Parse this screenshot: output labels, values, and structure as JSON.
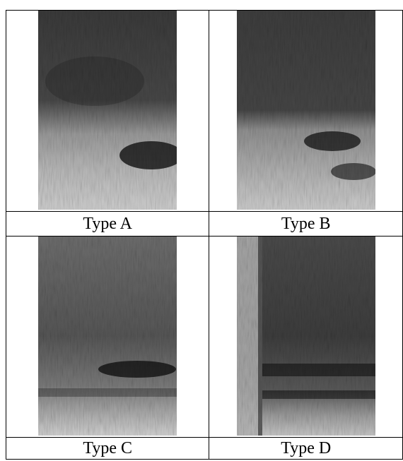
{
  "figure": {
    "panels": [
      {
        "label": "Type A"
      },
      {
        "label": "Type B"
      },
      {
        "label": "Type C"
      },
      {
        "label": "Type D"
      }
    ]
  }
}
